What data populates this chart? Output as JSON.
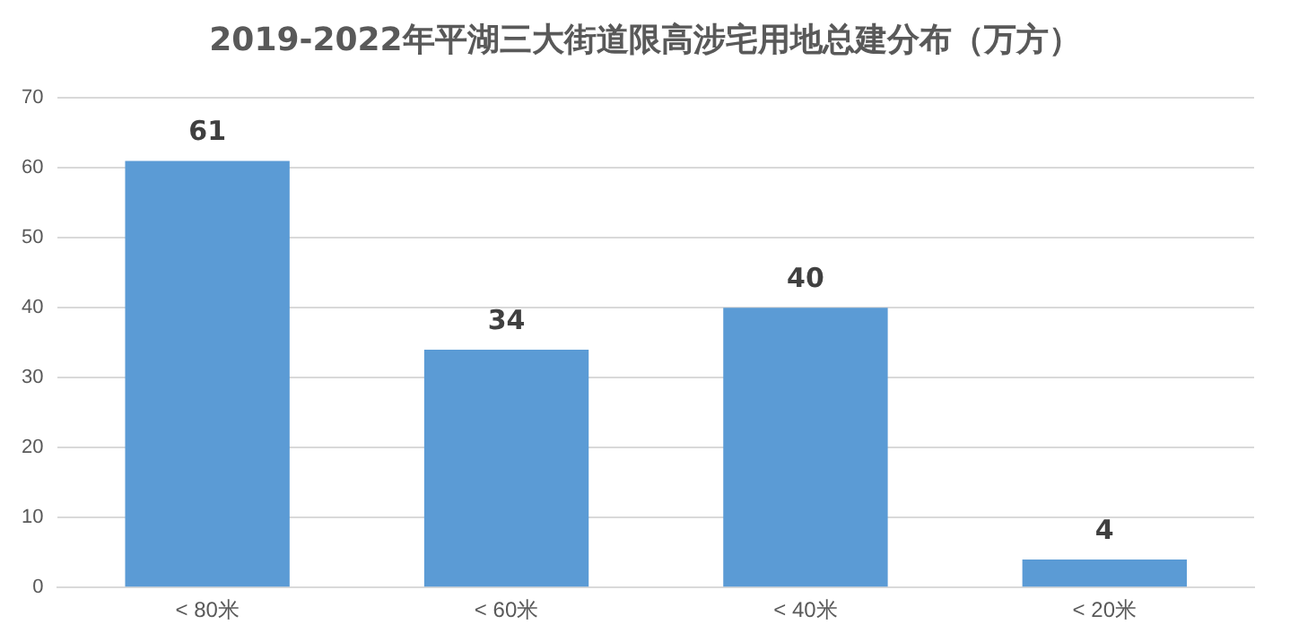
{
  "chart_data": {
    "type": "bar",
    "title": "2019-2022年平湖三大街道限高涉宅用地总建分布（万方）",
    "categories": [
      "< 80米",
      "< 60米",
      "< 40米",
      "< 20米"
    ],
    "values": [
      61,
      34,
      40,
      4
    ],
    "color": "#5b9bd5",
    "ylim": [
      0,
      70
    ],
    "yticks": [
      0,
      10,
      20,
      30,
      40,
      50,
      60,
      70
    ],
    "grid": "y",
    "data_labels": true,
    "legend": false
  }
}
